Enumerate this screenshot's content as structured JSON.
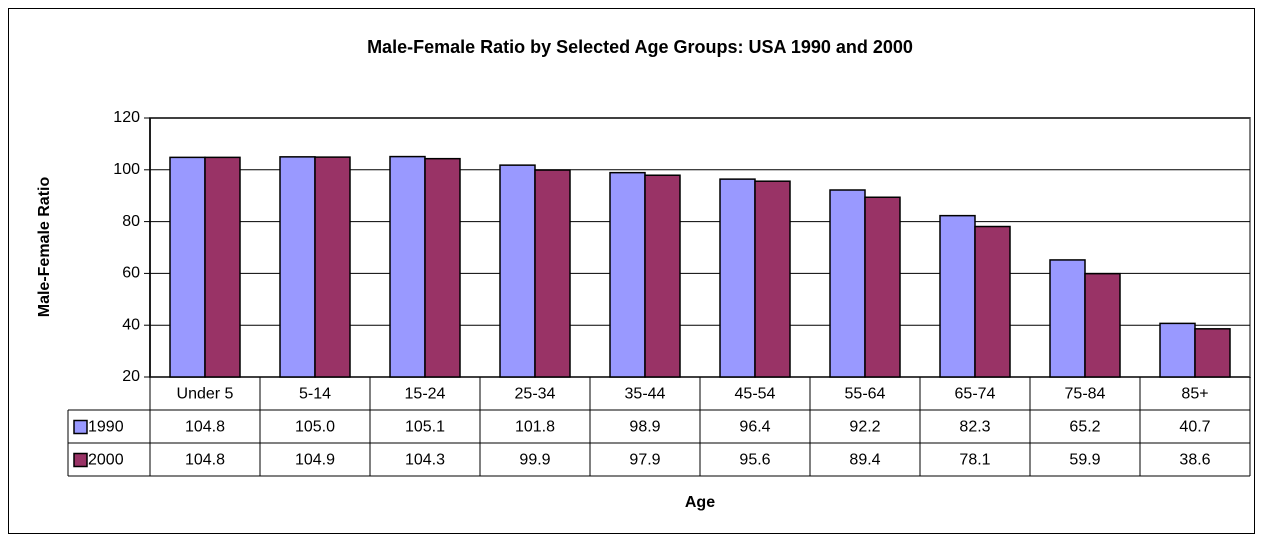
{
  "chart_data": {
    "type": "bar",
    "title": "Male-Female Ratio by Selected Age Groups: USA 1990 and 2000",
    "x_label": "Age",
    "y_label": "Male-Female Ratio",
    "categories": [
      "Under 5",
      "5-14",
      "15-24",
      "25-34",
      "35-44",
      "45-54",
      "55-64",
      "65-74",
      "75-84",
      "85+"
    ],
    "series": [
      {
        "name": "1990",
        "color": "#9999ff",
        "values": [
          104.8,
          105.0,
          105.1,
          101.8,
          98.9,
          96.4,
          92.2,
          82.3,
          65.2,
          40.7
        ],
        "value_labels": [
          "104.8",
          "105.0",
          "105.1",
          "101.8",
          "98.9",
          "96.4",
          "92.2",
          "82.3",
          "65.2",
          "40.7"
        ]
      },
      {
        "name": "2000",
        "color": "#993366",
        "values": [
          104.8,
          104.9,
          104.3,
          99.9,
          97.9,
          95.6,
          89.4,
          78.1,
          59.9,
          38.6
        ],
        "value_labels": [
          "104.8",
          "104.9",
          "104.3",
          "99.9",
          "97.9",
          "95.6",
          "89.4",
          "78.1",
          "59.9",
          "38.6"
        ]
      }
    ],
    "ylim": [
      20,
      120
    ],
    "yticks": [
      20,
      40,
      60,
      80,
      100,
      120
    ],
    "grid": true
  }
}
